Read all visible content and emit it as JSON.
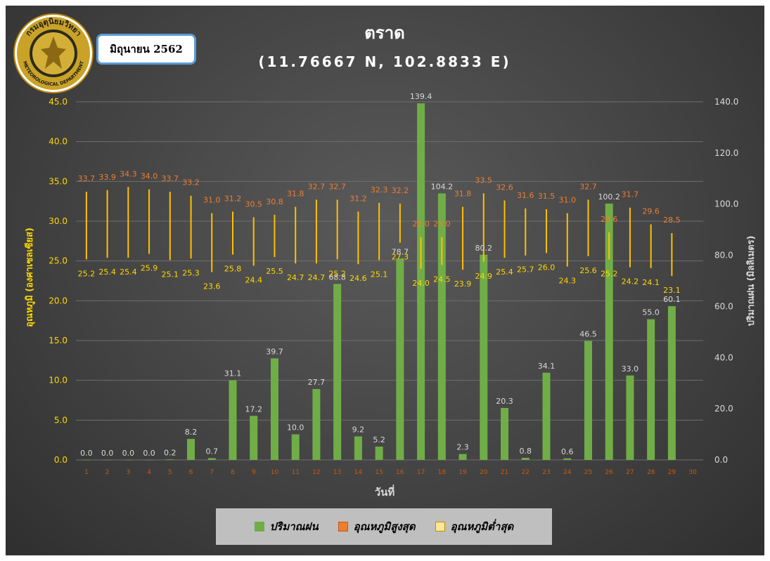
{
  "header": {
    "title": "ตราด",
    "coordinates": "(11.76667 N, 102.8833 E)",
    "month_label": "มิถุนายน 2562",
    "logo_text_top": "กรมอุตุนิยมวิทยา",
    "logo_text_bottom": "METEOROLOGICAL DEPARTMENT"
  },
  "legend": {
    "rain": "ปริมาณฝน",
    "tmax": "อุณหภูมิสูงสุด",
    "tmin": "อุณหภูมิต่ำสุด"
  },
  "colors": {
    "rain": "#70ad47",
    "tmax_label": "#ed7d31",
    "tmin_label": "#ffd700",
    "range_line": "#ffc000",
    "axis_left": "#ffd700",
    "axis_right": "#d9d9d9",
    "title": "#ffffff"
  },
  "chart_data": {
    "type": "bar",
    "xlabel": "วันที่",
    "ylabel_left": "อุณหภูมิ (องศาเซลเซียส)",
    "ylabel_right": "ปริมาณฝน (มิลลิเมตร)",
    "ylim_left": [
      0,
      45
    ],
    "ylim_right": [
      0,
      140
    ],
    "yticks_left": [
      "0.0",
      "5.0",
      "10.0",
      "15.0",
      "20.0",
      "25.0",
      "30.0",
      "35.0",
      "40.0",
      "45.0"
    ],
    "yticks_right": [
      "0.0",
      "20.0",
      "40.0",
      "60.0",
      "80.0",
      "100.0",
      "120.0",
      "140.0"
    ],
    "categories": [
      1,
      2,
      3,
      4,
      5,
      6,
      7,
      8,
      9,
      10,
      11,
      12,
      13,
      14,
      15,
      16,
      17,
      18,
      19,
      20,
      21,
      22,
      23,
      24,
      25,
      26,
      27,
      28,
      29,
      30
    ],
    "series": [
      {
        "name": "ปริมาณฝน",
        "axis": "right",
        "values": [
          0.0,
          0.0,
          0.0,
          0.0,
          0.2,
          8.2,
          0.7,
          31.1,
          17.2,
          39.7,
          10.0,
          27.7,
          68.8,
          9.2,
          5.2,
          78.7,
          139.4,
          104.2,
          2.3,
          80.2,
          20.3,
          0.8,
          34.1,
          0.6,
          46.5,
          100.2,
          33.0,
          55.0,
          60.1,
          null
        ]
      },
      {
        "name": "อุณหภูมิสูงสุด",
        "axis": "left",
        "values": [
          33.7,
          33.9,
          34.3,
          34.0,
          33.7,
          33.2,
          31.0,
          31.2,
          30.5,
          30.8,
          31.8,
          32.7,
          32.7,
          31.2,
          32.3,
          32.2,
          28.0,
          28.0,
          31.8,
          33.5,
          32.6,
          31.6,
          31.5,
          31.0,
          32.7,
          28.6,
          31.7,
          29.6,
          28.5,
          null
        ]
      },
      {
        "name": "อุณหภูมิต่ำสุด",
        "axis": "left",
        "values": [
          25.2,
          25.4,
          25.4,
          25.9,
          25.1,
          25.3,
          23.6,
          25.8,
          24.4,
          25.5,
          24.7,
          24.7,
          25.2,
          24.6,
          25.1,
          27.3,
          24.0,
          24.5,
          23.9,
          24.9,
          25.4,
          25.7,
          26.0,
          24.3,
          25.6,
          25.2,
          24.2,
          24.1,
          23.1,
          null
        ]
      }
    ]
  }
}
